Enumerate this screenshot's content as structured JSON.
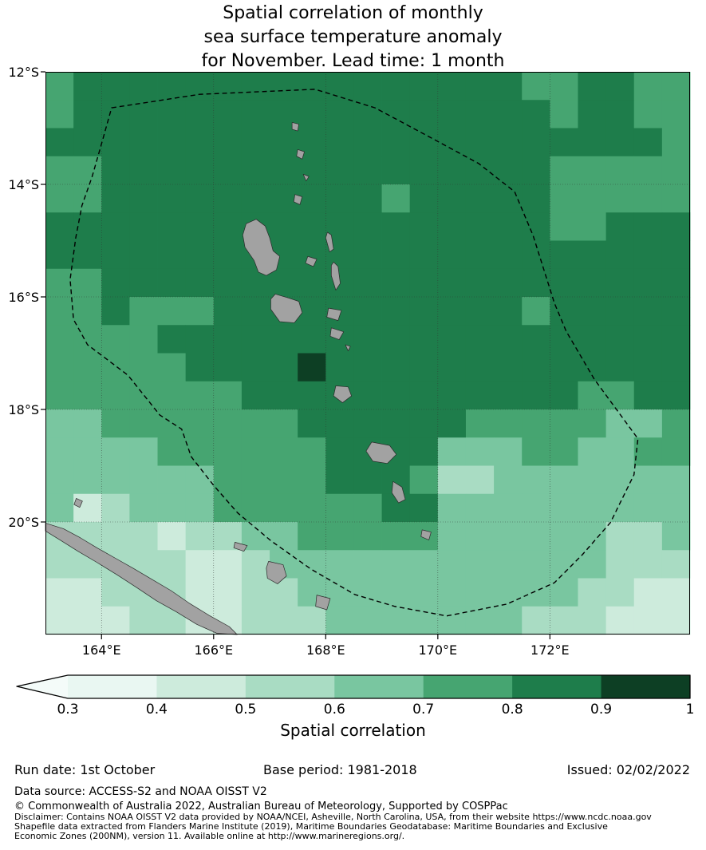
{
  "title": {
    "lines": [
      "Spatial correlation of monthly",
      "sea surface temperature anomaly",
      "for November. Lead time: 1 month"
    ]
  },
  "map": {
    "lon_min": 163.0,
    "lon_max": 174.5,
    "lat_min": 12.0,
    "lat_max": 22.0,
    "x_ticks": [
      {
        "lon": 164,
        "label": "164°E"
      },
      {
        "lon": 166,
        "label": "166°E"
      },
      {
        "lon": 168,
        "label": "168°E"
      },
      {
        "lon": 170,
        "label": "170°E"
      },
      {
        "lon": 172,
        "label": "172°E"
      }
    ],
    "y_ticks": [
      {
        "lat": 12,
        "label": "12°S"
      },
      {
        "lat": 14,
        "label": "14°S"
      },
      {
        "lat": 16,
        "label": "16°S"
      },
      {
        "lat": 18,
        "label": "18°S"
      },
      {
        "lat": 20,
        "label": "20°S"
      }
    ],
    "land_color": "#a2a2a2",
    "coast_color": "#2b2b2b",
    "gridline_color": "#333333",
    "eez_boundary": [
      [
        164.18,
        12.64
      ],
      [
        165.75,
        12.4
      ],
      [
        167.81,
        12.31
      ],
      [
        168.88,
        12.64
      ],
      [
        169.95,
        13.21
      ],
      [
        170.73,
        13.63
      ],
      [
        171.37,
        14.13
      ],
      [
        171.7,
        14.91
      ],
      [
        172.08,
        16.11
      ],
      [
        172.29,
        16.61
      ],
      [
        172.79,
        17.46
      ],
      [
        173.57,
        18.52
      ],
      [
        173.5,
        19.16
      ],
      [
        173.08,
        20.01
      ],
      [
        172.58,
        20.58
      ],
      [
        172.08,
        21.08
      ],
      [
        171.23,
        21.46
      ],
      [
        170.16,
        21.67
      ],
      [
        169.23,
        21.5
      ],
      [
        168.52,
        21.29
      ],
      [
        167.74,
        20.84
      ],
      [
        167.03,
        20.34
      ],
      [
        166.43,
        19.84
      ],
      [
        166.0,
        19.35
      ],
      [
        165.6,
        18.84
      ],
      [
        165.43,
        18.35
      ],
      [
        165.04,
        18.1
      ],
      [
        164.47,
        17.39
      ],
      [
        163.75,
        16.85
      ],
      [
        163.5,
        16.4
      ],
      [
        163.44,
        15.69
      ],
      [
        163.54,
        14.95
      ],
      [
        163.65,
        14.38
      ],
      [
        163.83,
        13.87
      ],
      [
        164.0,
        13.28
      ]
    ],
    "islands": [
      {
        "name": "banks-north",
        "pts": [
          [
            167.4,
            12.9
          ],
          [
            167.52,
            12.93
          ],
          [
            167.5,
            13.05
          ],
          [
            167.4,
            13.02
          ]
        ]
      },
      {
        "name": "banks-mid",
        "pts": [
          [
            167.5,
            13.38
          ],
          [
            167.62,
            13.42
          ],
          [
            167.58,
            13.55
          ],
          [
            167.48,
            13.5
          ]
        ]
      },
      {
        "name": "mota-lava",
        "pts": [
          [
            167.6,
            13.82
          ],
          [
            167.7,
            13.86
          ],
          [
            167.65,
            13.94
          ]
        ]
      },
      {
        "name": "gaua",
        "pts": [
          [
            167.45,
            14.18
          ],
          [
            167.58,
            14.22
          ],
          [
            167.54,
            14.36
          ],
          [
            167.43,
            14.31
          ]
        ]
      },
      {
        "name": "espiritu-santo",
        "pts": [
          [
            166.58,
            14.7
          ],
          [
            166.76,
            14.62
          ],
          [
            166.92,
            14.74
          ],
          [
            167.0,
            14.95
          ],
          [
            167.06,
            15.18
          ],
          [
            167.18,
            15.28
          ],
          [
            167.12,
            15.52
          ],
          [
            166.94,
            15.62
          ],
          [
            166.8,
            15.56
          ],
          [
            166.72,
            15.35
          ],
          [
            166.56,
            15.12
          ],
          [
            166.52,
            14.9
          ]
        ]
      },
      {
        "name": "maewo",
        "pts": [
          [
            168.03,
            14.85
          ],
          [
            168.1,
            14.9
          ],
          [
            168.14,
            15.15
          ],
          [
            168.07,
            15.2
          ],
          [
            168.0,
            14.95
          ]
        ]
      },
      {
        "name": "ambae",
        "pts": [
          [
            167.68,
            15.28
          ],
          [
            167.84,
            15.33
          ],
          [
            167.78,
            15.46
          ],
          [
            167.64,
            15.4
          ]
        ]
      },
      {
        "name": "pentecost",
        "pts": [
          [
            168.14,
            15.38
          ],
          [
            168.22,
            15.46
          ],
          [
            168.26,
            15.76
          ],
          [
            168.18,
            15.88
          ],
          [
            168.1,
            15.62
          ],
          [
            168.1,
            15.44
          ]
        ]
      },
      {
        "name": "malakula",
        "pts": [
          [
            167.1,
            15.95
          ],
          [
            167.34,
            16.02
          ],
          [
            167.52,
            16.08
          ],
          [
            167.58,
            16.28
          ],
          [
            167.44,
            16.46
          ],
          [
            167.18,
            16.44
          ],
          [
            167.02,
            16.22
          ],
          [
            167.02,
            16.04
          ]
        ]
      },
      {
        "name": "ambrym",
        "pts": [
          [
            168.05,
            16.2
          ],
          [
            168.28,
            16.24
          ],
          [
            168.22,
            16.42
          ],
          [
            168.02,
            16.36
          ]
        ]
      },
      {
        "name": "epi",
        "pts": [
          [
            168.1,
            16.55
          ],
          [
            168.32,
            16.62
          ],
          [
            168.24,
            16.76
          ],
          [
            168.08,
            16.7
          ]
        ]
      },
      {
        "name": "shepherd-islands",
        "pts": [
          [
            168.35,
            16.85
          ],
          [
            168.44,
            16.88
          ],
          [
            168.4,
            16.96
          ]
        ]
      },
      {
        "name": "efate",
        "pts": [
          [
            168.18,
            17.58
          ],
          [
            168.4,
            17.6
          ],
          [
            168.46,
            17.76
          ],
          [
            168.3,
            17.88
          ],
          [
            168.14,
            17.76
          ]
        ]
      },
      {
        "name": "erromango",
        "pts": [
          [
            168.82,
            18.58
          ],
          [
            169.14,
            18.64
          ],
          [
            169.26,
            18.8
          ],
          [
            169.1,
            18.96
          ],
          [
            168.84,
            18.92
          ],
          [
            168.72,
            18.74
          ]
        ]
      },
      {
        "name": "tanna",
        "pts": [
          [
            169.2,
            19.28
          ],
          [
            169.36,
            19.38
          ],
          [
            169.42,
            19.6
          ],
          [
            169.3,
            19.66
          ],
          [
            169.18,
            19.48
          ]
        ]
      },
      {
        "name": "aneityum",
        "pts": [
          [
            169.72,
            20.14
          ],
          [
            169.88,
            20.18
          ],
          [
            169.84,
            20.32
          ],
          [
            169.7,
            20.26
          ]
        ]
      },
      {
        "name": "belep",
        "pts": [
          [
            163.55,
            19.58
          ],
          [
            163.66,
            19.63
          ],
          [
            163.61,
            19.74
          ],
          [
            163.51,
            19.69
          ]
        ]
      },
      {
        "name": "new-caledonia",
        "pts": [
          [
            163.0,
            20.02
          ],
          [
            163.32,
            20.12
          ],
          [
            163.62,
            20.28
          ],
          [
            163.92,
            20.46
          ],
          [
            164.24,
            20.64
          ],
          [
            164.56,
            20.82
          ],
          [
            164.9,
            21.02
          ],
          [
            165.24,
            21.22
          ],
          [
            165.56,
            21.44
          ],
          [
            165.92,
            21.66
          ],
          [
            166.28,
            21.86
          ],
          [
            166.42,
            22.0
          ],
          [
            166.06,
            21.98
          ],
          [
            165.7,
            21.82
          ],
          [
            165.34,
            21.6
          ],
          [
            164.98,
            21.4
          ],
          [
            164.62,
            21.16
          ],
          [
            164.28,
            20.94
          ],
          [
            163.92,
            20.72
          ],
          [
            163.58,
            20.52
          ],
          [
            163.26,
            20.32
          ],
          [
            163.0,
            20.16
          ]
        ]
      },
      {
        "name": "ouvea",
        "pts": [
          [
            166.38,
            20.36
          ],
          [
            166.6,
            20.42
          ],
          [
            166.54,
            20.52
          ],
          [
            166.36,
            20.46
          ]
        ]
      },
      {
        "name": "lifou",
        "pts": [
          [
            166.98,
            20.7
          ],
          [
            167.24,
            20.76
          ],
          [
            167.3,
            20.96
          ],
          [
            167.14,
            21.1
          ],
          [
            166.96,
            21.0
          ],
          [
            166.94,
            20.82
          ]
        ]
      },
      {
        "name": "mare",
        "pts": [
          [
            167.84,
            21.3
          ],
          [
            168.08,
            21.36
          ],
          [
            168.02,
            21.56
          ],
          [
            167.82,
            21.5
          ]
        ]
      }
    ]
  },
  "chart_data": {
    "type": "heatmap",
    "title": "Spatial correlation of monthly sea surface temperature anomaly for November. Lead time: 1 month",
    "variable": "spatial correlation of SST anomaly",
    "month": "November",
    "lead_time": "1 month",
    "xlabel_ticks": [
      "164°E",
      "166°E",
      "168°E",
      "170°E",
      "172°E"
    ],
    "ylabel_ticks": [
      "12°S",
      "14°S",
      "16°S",
      "18°S",
      "20°S"
    ],
    "lon_start": 163.0,
    "lat_start": 12.0,
    "cell_deg": 0.5,
    "bins": {
      "3": "0.3-0.4",
      "4": "0.4-0.5",
      "5": "0.5-0.6",
      "6": "0.6-0.7",
      "7": "0.7-0.8",
      "8": "0.8-0.9",
      "9": "0.9-1.0"
    },
    "palette": {
      "3": "#e9f7f2",
      "4": "#cdebdc",
      "5": "#a9dcc3",
      "6": "#79c6a0",
      "7": "#46a571",
      "8": "#1e7d4b",
      "9": "#0d3f24"
    },
    "grid_rows": [
      "78888888888888888778877",
      "78888888888888888878877",
      "88888888888888888888887",
      "77888888888888888877777",
      "77888888888878888877777",
      "88888888888888888877888",
      "88888888888888888888888",
      "77888888888888888888888",
      "77877788888888888788888",
      "77778888888888888888888",
      "77777888898888888888888",
      "77777778888888888887788",
      "66777777788888877777667",
      "66667777778888666776677",
      "66666677778887556666666",
      "64566677777788666666666",
      "55554556677777666666556",
      "55555445666666666666555",
      "44555445566666666665544",
      "44455445556666666555444"
    ],
    "color_scale": {
      "ticks": [
        0.3,
        0.4,
        0.5,
        0.6,
        0.7,
        0.8,
        0.9,
        1.0
      ],
      "label": "Spatial correlation",
      "extend_low_arrow": true
    }
  },
  "colorbar": {
    "label": "Spatial correlation",
    "ticks": [
      "0.3",
      "0.4",
      "0.5",
      "0.6",
      "0.7",
      "0.8",
      "0.9",
      "1"
    ],
    "colors": [
      "#e9f7f2",
      "#cdebdc",
      "#a9dcc3",
      "#79c6a0",
      "#46a571",
      "#1e7d4b",
      "#0d3f24"
    ],
    "arrow_color": "#f4fbf9",
    "outline_color": "#000000"
  },
  "footer": {
    "run_date": "Run date: 1st October",
    "base_period": "Base period: 1981-2018",
    "issued": "Issued: 02/02/2022",
    "data_source": "Data source: ACCESS-S2 and NOAA OISST V2",
    "copyright": "© Commonwealth of Australia 2022, Australian Bureau of Meteorology, Supported by COSPPac",
    "disclaimer": "Disclaimer: Contains NOAA OISST V2 data provided by NOAA/NCEI, Asheville, North Carolina, USA, from their website https://www.ncdc.noaa.gov",
    "shapefile_lines": [
      "Shapefile data extracted from Flanders Marine Institute (2019), Maritime Boundaries Geodatabase: Maritime Boundaries and Exclusive",
      "Economic Zones (200NM), version 11. Available online at http://www.marineregions.org/."
    ]
  }
}
